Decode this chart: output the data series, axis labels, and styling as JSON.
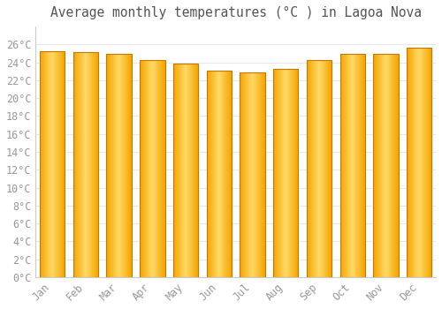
{
  "title": "Average monthly temperatures (°C ) in Lagoa Nova",
  "months": [
    "Jan",
    "Feb",
    "Mar",
    "Apr",
    "May",
    "Jun",
    "Jul",
    "Aug",
    "Sep",
    "Oct",
    "Nov",
    "Dec"
  ],
  "temperatures": [
    25.2,
    25.1,
    24.9,
    24.3,
    23.9,
    23.1,
    22.9,
    23.3,
    24.3,
    24.9,
    24.9,
    25.6
  ],
  "ylim": [
    0,
    28
  ],
  "yticks": [
    0,
    2,
    4,
    6,
    8,
    10,
    12,
    14,
    16,
    18,
    20,
    22,
    24,
    26
  ],
  "ytick_labels": [
    "0°C",
    "2°C",
    "4°C",
    "6°C",
    "8°C",
    "10°C",
    "12°C",
    "14°C",
    "16°C",
    "18°C",
    "20°C",
    "22°C",
    "24°C",
    "26°C"
  ],
  "bar_color_center": "#FFD966",
  "bar_color_edge": "#F4A500",
  "bar_border_color": "#C87800",
  "background_color": "#FFFFFF",
  "grid_color": "#E8E8E8",
  "title_fontsize": 10.5,
  "tick_fontsize": 8.5,
  "bar_width": 0.75
}
